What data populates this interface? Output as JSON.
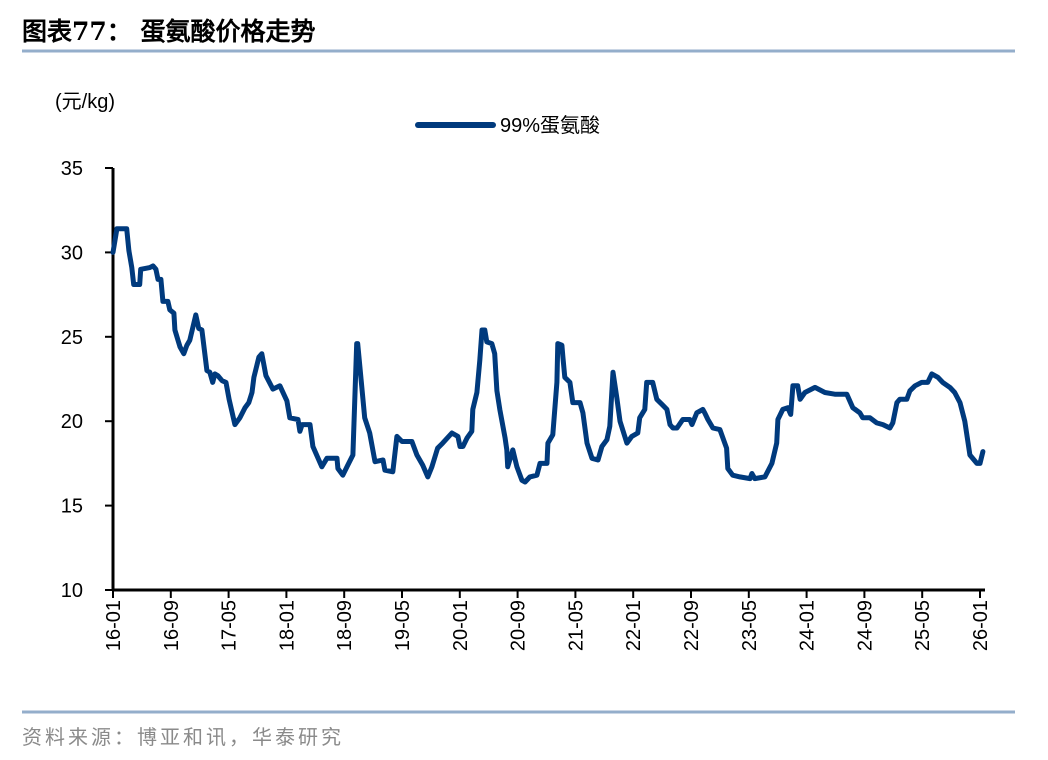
{
  "title": "图表77：  蛋氨酸价格走势",
  "source": "资料来源：博亚和讯，华泰研究",
  "colors": {
    "series": "#003A7D",
    "rule": "#94AECB",
    "axis": "#000000"
  },
  "chart_data": {
    "type": "line",
    "title": "",
    "ylabel": "(元/kg)",
    "xlabel": "",
    "ylim": [
      10,
      35
    ],
    "yticks": [
      "10",
      "15",
      "20",
      "25",
      "30",
      "35"
    ],
    "xlim": [
      "2016-01",
      "2026-01"
    ],
    "xticks": [
      "16-01",
      "16-09",
      "17-05",
      "18-01",
      "18-09",
      "19-05",
      "20-01",
      "20-09",
      "21-05",
      "22-01",
      "22-09",
      "23-05",
      "24-01",
      "24-09",
      "25-05",
      "26-01"
    ],
    "grid": false,
    "legend": "top-center",
    "series": [
      {
        "name": "99%蛋氨酸",
        "color": "#003A7D",
        "points": [
          [
            "2016-01-01",
            30.0
          ],
          [
            "2016-01-17",
            31.4
          ],
          [
            "2016-02-28",
            31.4
          ],
          [
            "2016-03-07",
            30.1
          ],
          [
            "2016-03-19",
            29.1
          ],
          [
            "2016-03-27",
            28.1
          ],
          [
            "2016-04-22",
            28.1
          ],
          [
            "2016-04-26",
            29.0
          ],
          [
            "2016-06-04",
            29.1
          ],
          [
            "2016-06-17",
            29.2
          ],
          [
            "2016-06-29",
            29.0
          ],
          [
            "2016-07-08",
            28.4
          ],
          [
            "2016-07-20",
            28.4
          ],
          [
            "2016-07-28",
            27.1
          ],
          [
            "2016-08-19",
            27.1
          ],
          [
            "2016-08-27",
            26.6
          ],
          [
            "2016-09-14",
            26.4
          ],
          [
            "2016-09-18",
            25.4
          ],
          [
            "2016-10-09",
            24.4
          ],
          [
            "2016-10-25",
            24.0
          ],
          [
            "2016-11-08",
            24.5
          ],
          [
            "2016-11-20",
            24.8
          ],
          [
            "2016-12-15",
            26.3
          ],
          [
            "2016-12-27",
            25.5
          ],
          [
            "2017-01-10",
            25.4
          ],
          [
            "2017-02-01",
            23.0
          ],
          [
            "2017-02-13",
            22.9
          ],
          [
            "2017-02-25",
            22.3
          ],
          [
            "2017-03-04",
            22.8
          ],
          [
            "2017-03-16",
            22.7
          ],
          [
            "2017-04-04",
            22.4
          ],
          [
            "2017-04-20",
            22.3
          ],
          [
            "2017-05-03",
            21.3
          ],
          [
            "2017-05-27",
            19.8
          ],
          [
            "2017-06-18",
            20.2
          ],
          [
            "2017-07-09",
            20.8
          ],
          [
            "2017-07-25",
            21.1
          ],
          [
            "2017-08-08",
            21.7
          ],
          [
            "2017-08-16",
            22.6
          ],
          [
            "2017-09-07",
            23.8
          ],
          [
            "2017-09-19",
            24.0
          ],
          [
            "2017-10-06",
            22.7
          ],
          [
            "2017-11-05",
            21.9
          ],
          [
            "2017-12-04",
            22.1
          ],
          [
            "2018-01-03",
            21.2
          ],
          [
            "2018-01-15",
            20.2
          ],
          [
            "2018-02-19",
            20.1
          ],
          [
            "2018-02-27",
            19.4
          ],
          [
            "2018-03-06",
            19.8
          ],
          [
            "2018-04-09",
            19.8
          ],
          [
            "2018-04-21",
            18.5
          ],
          [
            "2018-05-28",
            17.3
          ],
          [
            "2018-06-19",
            17.8
          ],
          [
            "2018-08-01",
            17.8
          ],
          [
            "2018-08-05",
            17.2
          ],
          [
            "2018-08-25",
            16.8
          ],
          [
            "2018-09-16",
            17.4
          ],
          [
            "2018-10-07",
            18.0
          ],
          [
            "2018-10-23",
            24.6
          ],
          [
            "2018-10-27",
            24.6
          ],
          [
            "2018-11-26",
            20.2
          ],
          [
            "2018-12-17",
            19.3
          ],
          [
            "2019-01-09",
            17.6
          ],
          [
            "2019-02-12",
            17.7
          ],
          [
            "2019-02-20",
            17.1
          ],
          [
            "2019-03-23",
            17.0
          ],
          [
            "2019-04-10",
            19.1
          ],
          [
            "2019-05-01",
            18.8
          ],
          [
            "2019-06-12",
            18.8
          ],
          [
            "2019-07-03",
            18.0
          ],
          [
            "2019-07-27",
            17.4
          ],
          [
            "2019-08-18",
            16.7
          ],
          [
            "2019-09-05",
            17.3
          ],
          [
            "2019-09-29",
            18.4
          ],
          [
            "2019-10-20",
            18.7
          ],
          [
            "2019-11-28",
            19.3
          ],
          [
            "2019-12-23",
            19.1
          ],
          [
            "2020-01-02",
            18.5
          ],
          [
            "2020-01-14",
            18.5
          ],
          [
            "2020-02-01",
            19.0
          ],
          [
            "2020-02-21",
            19.4
          ],
          [
            "2020-02-25",
            20.7
          ],
          [
            "2020-03-12",
            21.7
          ],
          [
            "2020-03-24",
            23.6
          ],
          [
            "2020-04-03",
            25.4
          ],
          [
            "2020-04-15",
            25.4
          ],
          [
            "2020-04-23",
            24.7
          ],
          [
            "2020-05-14",
            24.6
          ],
          [
            "2020-05-26",
            24.0
          ],
          [
            "2020-06-05",
            21.8
          ],
          [
            "2020-06-17",
            20.7
          ],
          [
            "2020-07-09",
            19.0
          ],
          [
            "2020-07-16",
            18.3
          ],
          [
            "2020-07-20",
            17.3
          ],
          [
            "2020-08-11",
            18.3
          ],
          [
            "2020-08-28",
            17.3
          ],
          [
            "2020-09-19",
            16.5
          ],
          [
            "2020-10-02",
            16.4
          ],
          [
            "2020-10-22",
            16.7
          ],
          [
            "2020-11-21",
            16.8
          ],
          [
            "2020-12-04",
            17.5
          ],
          [
            "2021-01-03",
            17.5
          ],
          [
            "2021-01-07",
            18.7
          ],
          [
            "2021-01-27",
            19.2
          ],
          [
            "2021-02-14",
            22.3
          ],
          [
            "2021-02-18",
            24.6
          ],
          [
            "2021-03-05",
            24.5
          ],
          [
            "2021-03-09",
            23.8
          ],
          [
            "2021-03-17",
            22.6
          ],
          [
            "2021-04-08",
            22.3
          ],
          [
            "2021-04-20",
            21.1
          ],
          [
            "2021-05-20",
            21.1
          ],
          [
            "2021-06-02",
            20.5
          ],
          [
            "2021-06-19",
            18.7
          ],
          [
            "2021-07-10",
            17.8
          ],
          [
            "2021-08-05",
            17.7
          ],
          [
            "2021-08-21",
            18.5
          ],
          [
            "2021-09-12",
            18.9
          ],
          [
            "2021-09-24",
            19.7
          ],
          [
            "2021-10-07",
            22.9
          ],
          [
            "2021-10-23",
            21.4
          ],
          [
            "2021-11-06",
            20.0
          ],
          [
            "2021-12-05",
            18.7
          ],
          [
            "2021-12-25",
            19.1
          ],
          [
            "2022-01-20",
            19.3
          ],
          [
            "2022-01-28",
            20.2
          ],
          [
            "2022-02-19",
            20.7
          ],
          [
            "2022-02-27",
            22.3
          ],
          [
            "2022-03-22",
            22.3
          ],
          [
            "2022-04-09",
            21.3
          ],
          [
            "2022-04-30",
            21.0
          ],
          [
            "2022-05-21",
            20.7
          ],
          [
            "2022-06-04",
            19.8
          ],
          [
            "2022-06-16",
            19.6
          ],
          [
            "2022-07-03",
            19.6
          ],
          [
            "2022-07-27",
            20.1
          ],
          [
            "2022-08-26",
            20.1
          ],
          [
            "2022-09-05",
            19.8
          ],
          [
            "2022-09-25",
            20.5
          ],
          [
            "2022-10-20",
            20.7
          ],
          [
            "2022-10-28",
            20.5
          ],
          [
            "2022-11-11",
            20.1
          ],
          [
            "2022-12-02",
            19.6
          ],
          [
            "2023-01-01",
            19.5
          ],
          [
            "2023-01-29",
            18.4
          ],
          [
            "2023-02-04",
            17.2
          ],
          [
            "2023-02-24",
            16.8
          ],
          [
            "2023-03-24",
            16.7
          ],
          [
            "2023-05-06",
            16.6
          ],
          [
            "2023-05-14",
            16.9
          ],
          [
            "2023-05-26",
            16.6
          ],
          [
            "2023-07-08",
            16.7
          ],
          [
            "2023-08-07",
            17.5
          ],
          [
            "2023-08-27",
            18.7
          ],
          [
            "2023-09-02",
            20.1
          ],
          [
            "2023-09-22",
            20.7
          ],
          [
            "2023-10-13",
            20.8
          ],
          [
            "2023-10-25",
            20.4
          ],
          [
            "2023-11-04",
            22.1
          ],
          [
            "2023-11-24",
            22.1
          ],
          [
            "2023-12-04",
            21.3
          ],
          [
            "2023-12-24",
            21.7
          ],
          [
            "2024-02-06",
            22.0
          ],
          [
            "2024-03-17",
            21.7
          ],
          [
            "2024-04-28",
            21.6
          ],
          [
            "2024-06-18",
            21.6
          ],
          [
            "2024-07-13",
            20.8
          ],
          [
            "2024-08-12",
            20.5
          ],
          [
            "2024-08-24",
            20.2
          ],
          [
            "2024-09-24",
            20.2
          ],
          [
            "2024-10-22",
            19.9
          ],
          [
            "2024-11-18",
            19.8
          ],
          [
            "2024-12-17",
            19.6
          ],
          [
            "2024-12-29",
            19.9
          ],
          [
            "2025-01-16",
            21.1
          ],
          [
            "2025-01-28",
            21.3
          ],
          [
            "2025-02-27",
            21.3
          ],
          [
            "2025-03-10",
            21.8
          ],
          [
            "2025-04-01",
            22.1
          ],
          [
            "2025-04-29",
            22.3
          ],
          [
            "2025-05-24",
            22.3
          ],
          [
            "2025-06-11",
            22.8
          ],
          [
            "2025-07-06",
            22.6
          ],
          [
            "2025-07-26",
            22.3
          ],
          [
            "2025-08-26",
            22.0
          ],
          [
            "2025-09-16",
            21.7
          ],
          [
            "2025-10-08",
            21.1
          ],
          [
            "2025-10-28",
            20.0
          ],
          [
            "2025-11-19",
            18.0
          ],
          [
            "2025-12-18",
            17.5
          ],
          [
            "2026-01-01",
            17.5
          ],
          [
            "2026-01-13",
            18.2
          ]
        ]
      }
    ]
  }
}
